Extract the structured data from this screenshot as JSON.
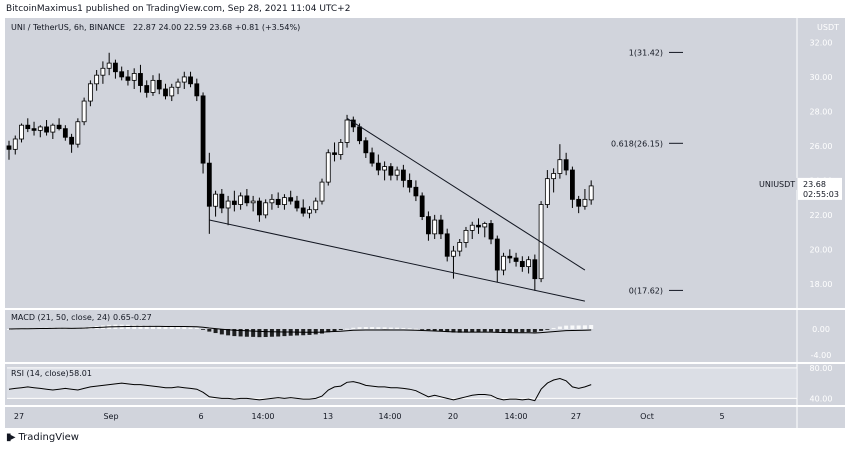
{
  "header": {
    "published_text": "BitcoinMaximus1 published on TradingView.com, Sep 28, 2021 11:04 UTC+2"
  },
  "legend": {
    "symbol": "UNI / TetherUS, 6h, BINANCE",
    "ohlc": "22.87   24.00   22.59   23.68   +0.81 (+3.54%)"
  },
  "price_tag": {
    "symbol": "UNIUSDT",
    "value": "23.68",
    "countdown": "02:55:03"
  },
  "currency_label": "USDT",
  "branding": {
    "name": "TradingView"
  },
  "colors": {
    "background": "#d1d4dc",
    "candle": "#000000",
    "up_fill": "#ffffff",
    "line": "#131722"
  },
  "chart_data": {
    "type": "candlestick",
    "instrument": "UNI / TetherUS",
    "interval": "6h",
    "exchange": "BINANCE",
    "price_axis": {
      "range": [
        16.6,
        33.3
      ],
      "ticks": [
        32,
        30,
        28,
        26,
        24,
        22,
        20,
        18
      ],
      "tick_labels": [
        "32.00",
        "30.00",
        "28.00",
        "26.00",
        "24.00",
        "22.00",
        "20.00",
        "18.00"
      ]
    },
    "x_axis": {
      "tick_labels": [
        "27",
        "Sep",
        "6",
        "14:00",
        "13",
        "14:00",
        "20",
        "14:00",
        "27",
        "Oct",
        "5"
      ]
    },
    "fib_levels": [
      {
        "label": "1(31.42)",
        "value": 31.42
      },
      {
        "label": "0.618(26.15)",
        "value": 26.15
      },
      {
        "label": "0(17.62)",
        "value": 17.62
      }
    ],
    "trendlines": [
      {
        "name": "upper",
        "from": 27.6,
        "to": 18.8
      },
      {
        "name": "lower",
        "from": 21.7,
        "to": 17.0
      }
    ],
    "candles": [
      [
        26.0,
        26.3,
        25.2,
        25.8
      ],
      [
        25.8,
        26.6,
        25.5,
        26.4
      ],
      [
        26.4,
        27.3,
        26.2,
        27.2
      ],
      [
        27.2,
        27.6,
        26.8,
        27.0
      ],
      [
        27.0,
        27.4,
        26.6,
        26.9
      ],
      [
        26.9,
        27.2,
        26.5,
        27.1
      ],
      [
        27.1,
        27.5,
        26.6,
        26.8
      ],
      [
        26.8,
        27.3,
        26.4,
        27.2
      ],
      [
        27.2,
        27.6,
        26.9,
        27.0
      ],
      [
        27.0,
        27.2,
        26.3,
        26.5
      ],
      [
        26.5,
        26.7,
        25.6,
        26.1
      ],
      [
        26.1,
        27.6,
        25.9,
        27.4
      ],
      [
        27.4,
        28.8,
        27.2,
        28.6
      ],
      [
        28.6,
        29.8,
        28.3,
        29.6
      ],
      [
        29.6,
        30.4,
        29.2,
        30.1
      ],
      [
        30.1,
        30.9,
        29.6,
        30.5
      ],
      [
        30.5,
        31.4,
        30.1,
        30.8
      ],
      [
        30.8,
        31.0,
        29.9,
        30.3
      ],
      [
        30.3,
        30.6,
        29.8,
        30.0
      ],
      [
        30.0,
        30.4,
        29.5,
        29.8
      ],
      [
        29.8,
        30.5,
        29.3,
        30.2
      ],
      [
        30.2,
        30.7,
        29.1,
        29.5
      ],
      [
        29.5,
        29.8,
        28.8,
        29.1
      ],
      [
        29.1,
        30.1,
        28.9,
        29.8
      ],
      [
        29.8,
        30.2,
        29.0,
        29.3
      ],
      [
        29.3,
        29.6,
        28.7,
        28.9
      ],
      [
        28.9,
        29.6,
        28.6,
        29.4
      ],
      [
        29.4,
        29.9,
        29.0,
        29.7
      ],
      [
        29.7,
        30.3,
        29.3,
        30.0
      ],
      [
        30.0,
        30.3,
        29.4,
        29.6
      ],
      [
        29.6,
        29.9,
        28.6,
        28.9
      ],
      [
        28.9,
        29.1,
        24.4,
        25.0
      ],
      [
        25.0,
        25.6,
        20.9,
        22.5
      ],
      [
        22.5,
        23.4,
        21.9,
        23.2
      ],
      [
        23.2,
        23.5,
        22.1,
        22.4
      ],
      [
        22.4,
        23.1,
        21.4,
        22.8
      ],
      [
        22.8,
        23.4,
        22.2,
        22.6
      ],
      [
        22.6,
        23.3,
        22.3,
        23.1
      ],
      [
        23.1,
        23.5,
        22.5,
        22.7
      ],
      [
        22.7,
        23.1,
        22.2,
        22.8
      ],
      [
        22.8,
        23.0,
        21.6,
        22.0
      ],
      [
        22.0,
        22.9,
        21.8,
        22.7
      ],
      [
        22.7,
        23.2,
        22.3,
        22.9
      ],
      [
        22.9,
        23.3,
        22.4,
        22.6
      ],
      [
        22.6,
        23.2,
        22.3,
        23.0
      ],
      [
        23.0,
        23.4,
        22.6,
        22.8
      ],
      [
        22.8,
        23.1,
        22.2,
        22.4
      ],
      [
        22.4,
        22.9,
        21.9,
        22.1
      ],
      [
        22.1,
        22.5,
        21.8,
        22.3
      ],
      [
        22.3,
        23.0,
        22.1,
        22.8
      ],
      [
        22.8,
        24.1,
        22.6,
        23.9
      ],
      [
        23.9,
        25.8,
        23.7,
        25.6
      ],
      [
        25.6,
        26.2,
        25.1,
        25.5
      ],
      [
        25.5,
        26.4,
        25.2,
        26.2
      ],
      [
        26.2,
        27.8,
        25.9,
        27.5
      ],
      [
        27.5,
        27.7,
        26.8,
        27.1
      ],
      [
        27.1,
        27.3,
        26.1,
        26.3
      ],
      [
        26.3,
        26.5,
        25.3,
        25.6
      ],
      [
        25.6,
        25.9,
        24.8,
        25.0
      ],
      [
        25.0,
        25.5,
        24.3,
        24.6
      ],
      [
        24.6,
        25.1,
        24.0,
        24.8
      ],
      [
        24.8,
        25.0,
        24.0,
        24.3
      ],
      [
        24.3,
        24.8,
        24.0,
        24.6
      ],
      [
        24.6,
        24.9,
        23.6,
        24.0
      ],
      [
        24.0,
        24.4,
        23.3,
        23.6
      ],
      [
        23.6,
        24.0,
        22.8,
        23.1
      ],
      [
        23.1,
        23.3,
        21.7,
        21.9
      ],
      [
        21.9,
        22.2,
        20.5,
        20.9
      ],
      [
        20.9,
        22.0,
        20.6,
        21.7
      ],
      [
        21.7,
        22.0,
        20.6,
        20.9
      ],
      [
        20.9,
        21.2,
        19.3,
        19.6
      ],
      [
        19.6,
        20.2,
        18.3,
        19.9
      ],
      [
        19.9,
        20.6,
        19.6,
        20.4
      ],
      [
        20.4,
        21.3,
        20.1,
        21.1
      ],
      [
        21.1,
        21.6,
        20.6,
        21.4
      ],
      [
        21.4,
        21.8,
        20.9,
        21.3
      ],
      [
        21.3,
        21.6,
        20.7,
        21.5
      ],
      [
        21.5,
        21.7,
        20.3,
        20.6
      ],
      [
        20.6,
        20.8,
        18.1,
        18.8
      ],
      [
        18.8,
        19.8,
        18.5,
        19.6
      ],
      [
        19.6,
        20.0,
        19.2,
        19.5
      ],
      [
        19.5,
        19.8,
        19.0,
        19.3
      ],
      [
        19.3,
        19.6,
        18.7,
        19.0
      ],
      [
        19.0,
        19.6,
        18.6,
        19.4
      ],
      [
        19.4,
        19.7,
        17.6,
        18.3
      ],
      [
        18.3,
        22.8,
        18.1,
        22.6
      ],
      [
        22.6,
        24.6,
        22.4,
        24.1
      ],
      [
        24.1,
        24.7,
        23.3,
        24.4
      ],
      [
        24.4,
        26.1,
        24.1,
        25.2
      ],
      [
        25.2,
        25.6,
        24.3,
        24.6
      ],
      [
        24.6,
        24.8,
        22.4,
        22.9
      ],
      [
        22.9,
        23.1,
        22.1,
        22.5
      ],
      [
        22.5,
        23.5,
        22.3,
        22.9
      ],
      [
        22.87,
        24.0,
        22.59,
        23.68
      ]
    ],
    "macd": {
      "label": "MACD (21, 50, close, 24)",
      "values": [
        "0.65",
        "-0.27"
      ],
      "axis": {
        "ticks": [
          0.0,
          -4.0
        ],
        "tick_labels": [
          "0.00",
          "-4.00"
        ]
      }
    },
    "rsi": {
      "label": "RSI (14, close)",
      "value": "58.01",
      "current": 58.01,
      "axis": {
        "range": [
          30,
          85
        ],
        "ticks": [
          80,
          40
        ],
        "tick_labels": [
          "80.00",
          "40.00"
        ]
      },
      "band": [
        40,
        80
      ],
      "values": [
        52,
        53,
        54,
        55,
        54,
        53,
        52,
        51,
        52,
        53,
        52,
        51,
        53,
        55,
        56,
        57,
        58,
        59,
        60,
        59,
        58,
        58,
        57,
        56,
        55,
        54,
        54,
        55,
        54,
        53,
        52,
        48,
        42,
        41,
        40,
        40,
        39,
        40,
        40,
        39,
        38,
        39,
        40,
        41,
        40,
        41,
        40,
        39,
        39,
        40,
        43,
        51,
        55,
        56,
        61,
        62,
        60,
        57,
        56,
        55,
        55,
        54,
        54,
        53,
        52,
        50,
        46,
        42,
        44,
        42,
        40,
        38,
        40,
        42,
        44,
        45,
        45,
        44,
        40,
        38,
        39,
        39,
        38,
        39,
        37,
        52,
        60,
        64,
        66,
        63,
        55,
        53,
        55,
        58.01
      ]
    }
  }
}
